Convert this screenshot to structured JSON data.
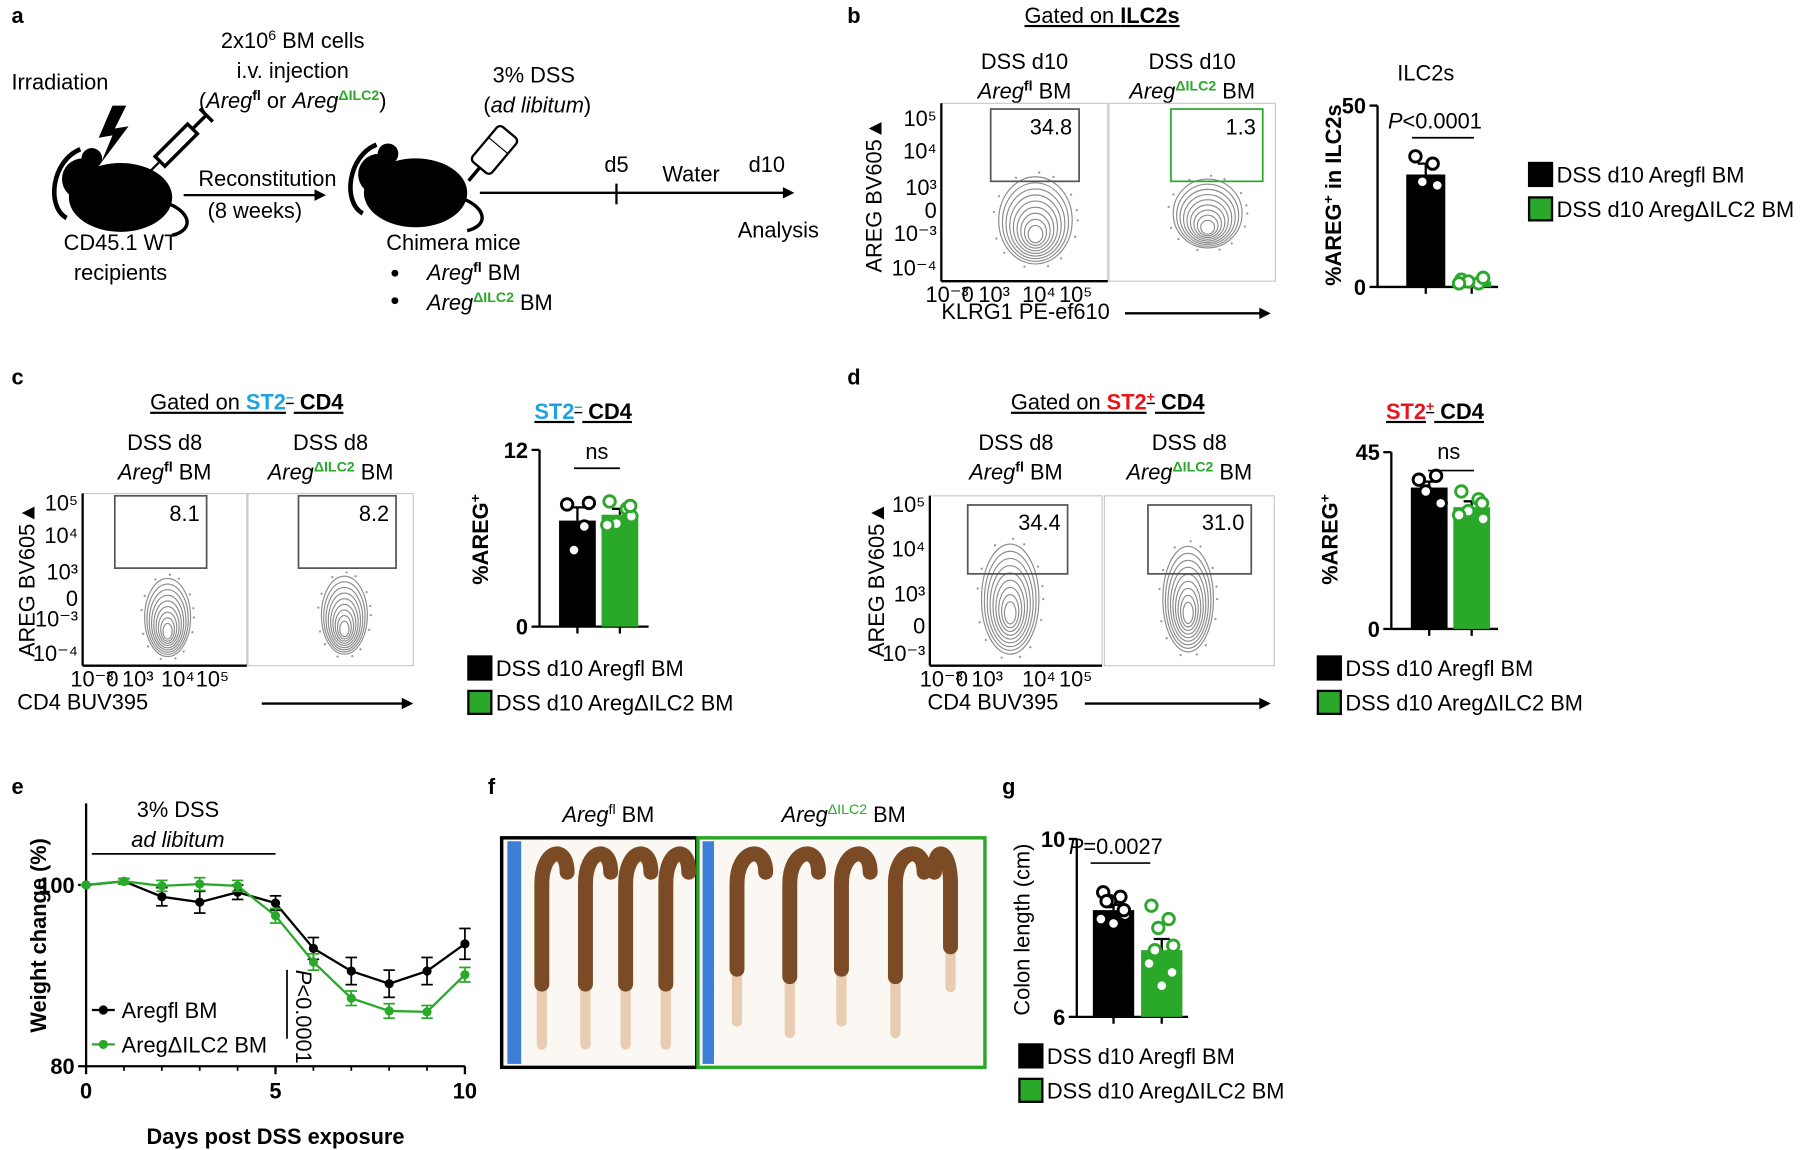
{
  "panel_labels": [
    "a",
    "b",
    "c",
    "d",
    "e",
    "f",
    "g"
  ],
  "schematic": {
    "irradiation": "Irradiation",
    "cells": [
      "2x10",
      "6",
      " BM cells"
    ],
    "injection": "i.v. injection",
    "donors": [
      "(",
      "Areg",
      "fl",
      " or ",
      "Areg",
      "ΔILC2",
      ")"
    ],
    "dss": "3% DSS",
    "ad_libitum": [
      "(",
      "ad libitum",
      ")"
    ],
    "recipients": [
      "CD45.1 WT",
      "recipients"
    ],
    "reconstitution": [
      "Reconstitution",
      "(8 weeks)"
    ],
    "chimera": "Chimera mice",
    "groups": [
      [
        "Areg",
        "fl",
        " BM"
      ],
      [
        "Areg",
        "ΔILC2",
        " BM"
      ]
    ],
    "timeline": [
      "d5",
      "Water",
      "d10",
      "Analysis"
    ]
  },
  "flow": [
    {
      "gate_title": [
        "Gated on ",
        "ILC2s"
      ],
      "y_label": "AREG BV605▲",
      "x_label": "KLRG1 PE-ef610",
      "plots": [
        {
          "header": {
            "line1": "DSS d10",
            "line2": [
              "Areg",
              "fl",
              " BM"
            ]
          },
          "gate": "34.8"
        },
        {
          "header": {
            "line1": "DSS d10",
            "line2": [
              "Areg",
              "ΔILC2",
              " BM"
            ]
          },
          "gate": "1.3"
        }
      ],
      "y_ticks": [
        "10⁵",
        "10⁴",
        "10³",
        "0",
        "10⁻³",
        "10⁻⁴"
      ],
      "x_ticks": [
        "10⁻³",
        "0",
        "10³",
        "10⁴",
        "10⁵"
      ]
    },
    {
      "gate_title": [
        "Gated on ",
        "ST2",
        "–",
        " CD4"
      ],
      "y_label": "AREG BV605▲",
      "x_label": "CD4 BUV395",
      "plots": [
        {
          "header": {
            "line1": "DSS d8",
            "line2": [
              "Areg",
              "fl",
              " BM"
            ]
          },
          "gate": "8.1"
        },
        {
          "header": {
            "line1": "DSS d8",
            "line2": [
              "Areg",
              "ΔILC2",
              " BM"
            ]
          },
          "gate": "8.2"
        }
      ],
      "y_ticks": [
        "10⁵",
        "10⁴",
        "10³",
        "0",
        "10⁻³",
        "10⁻⁴"
      ],
      "x_ticks": [
        "10⁻³",
        "0",
        "10³",
        "10⁴",
        "10⁵"
      ]
    },
    {
      "gate_title": [
        "Gated on ",
        "ST2",
        "+",
        " CD4"
      ],
      "y_label": "AREG BV605▲",
      "x_label": "CD4 BUV395",
      "plots": [
        {
          "header": {
            "line1": "DSS d8",
            "line2": [
              "Areg",
              "fl",
              " BM"
            ]
          },
          "gate": "34.4"
        },
        {
          "header": {
            "line1": "DSS d8",
            "line2": [
              "Areg",
              "ΔILC2",
              " BM"
            ]
          },
          "gate": "31.0"
        }
      ],
      "y_ticks": [
        "10⁵",
        "10⁴",
        "10³",
        "0",
        "10⁻³"
      ],
      "x_ticks": [
        "10⁻³",
        "0",
        "10³",
        "10⁴",
        "10⁵"
      ]
    }
  ],
  "photo": {
    "labels": [
      [
        "Areg",
        "fl",
        " BM"
      ],
      [
        "Areg",
        "ΔILC2",
        " BM"
      ]
    ]
  },
  "chart_data": [
    {
      "type": "bar",
      "title": "ILC2s",
      "y_label": [
        "%AREG",
        "+",
        " in ILC2s"
      ],
      "annotation": [
        "P",
        "<0.0001"
      ],
      "categories": [
        null
      ],
      "series": [
        {
          "name": "DSS d10 Aregfl BM",
          "color": "#000000",
          "values": [
            31
          ],
          "errors": [
            3
          ],
          "points": [
            [
              36,
              34,
              29,
              28
            ]
          ]
        },
        {
          "name": "DSS d10 AregΔILC2 BM",
          "color": "#2aa82a",
          "values": [
            1.5
          ],
          "errors": [
            0.5
          ],
          "points": [
            [
              2,
              1,
              1.5,
              2.5,
              1
            ]
          ]
        }
      ],
      "ylim": [
        0,
        50
      ],
      "yticks": [
        0,
        50
      ]
    },
    {
      "type": "bar",
      "title": [
        "ST2",
        "–",
        " CD4"
      ],
      "y_label": [
        "%AREG",
        "+"
      ],
      "annotation": "ns",
      "categories": [
        null
      ],
      "series": [
        {
          "name": "DSS d10 Aregfl BM",
          "color": "#000000",
          "values": [
            7.2
          ],
          "errors": [
            0.9
          ],
          "points": [
            [
              8.3,
              6.8,
              5.2,
              8.4
            ]
          ]
        },
        {
          "name": "DSS d10 AregΔILC2 BM",
          "color": "#2aa82a",
          "values": [
            7.6
          ],
          "errors": [
            0.4
          ],
          "points": [
            [
              8.5,
              8,
              7,
              7.5,
              6.9,
              8.2
            ]
          ]
        }
      ],
      "ylim": [
        0,
        12
      ],
      "yticks": [
        0,
        12
      ]
    },
    {
      "type": "bar",
      "title": [
        "ST2",
        "+",
        " CD4"
      ],
      "y_label": [
        "%AREG",
        "+"
      ],
      "annotation": "ns",
      "categories": [
        null
      ],
      "series": [
        {
          "name": "DSS d10 Aregfl BM",
          "color": "#000000",
          "values": [
            36
          ],
          "errors": [
            1.5
          ],
          "points": [
            [
              38,
              39,
              35,
              32
            ]
          ]
        },
        {
          "name": "DSS d10 AregΔILC2 BM",
          "color": "#2aa82a",
          "values": [
            31
          ],
          "errors": [
            1.5
          ],
          "points": [
            [
              35,
              33,
              30,
              28,
              29,
              32
            ]
          ]
        }
      ],
      "ylim": [
        0,
        45
      ],
      "yticks": [
        0,
        45
      ]
    },
    {
      "type": "line",
      "title": [
        "3% DSS",
        "ad libitum"
      ],
      "x_label": "Days post DSS exposure",
      "y_label": "Weight change (%)",
      "annotation": [
        "P",
        "<0.0001"
      ],
      "x": [
        0,
        1,
        2,
        3,
        4,
        5,
        6,
        7,
        8,
        9,
        10
      ],
      "series": [
        {
          "name": "Aregfl BM",
          "color": "#000000",
          "values": [
            100,
            100.4,
            98.7,
            98.1,
            99.2,
            98.0,
            93.0,
            90.5,
            89.1,
            90.5,
            93.5
          ],
          "errors": [
            0,
            0.3,
            1,
            1.2,
            0.8,
            0.8,
            1.2,
            1.5,
            1.5,
            1.5,
            1.7
          ]
        },
        {
          "name": "AregΔILC2 BM",
          "color": "#2aa82a",
          "values": [
            100,
            100.4,
            99.9,
            100.1,
            99.9,
            96.6,
            91.5,
            87.5,
            86.1,
            86.0,
            90.1
          ],
          "errors": [
            0,
            0.3,
            0.6,
            0.7,
            0.6,
            0.8,
            0.9,
            0.8,
            0.8,
            0.7,
            0.8
          ]
        }
      ],
      "xlim": [
        0,
        10
      ],
      "xticks": [
        0,
        5,
        10
      ],
      "ylim": [
        80,
        109
      ],
      "yticks": [
        80,
        100
      ]
    },
    {
      "type": "bar",
      "y_label": "Colon length (cm)",
      "annotation": [
        "P",
        "=0.0027"
      ],
      "categories": [
        null
      ],
      "series": [
        {
          "name": "DSS d10 Aregfl BM",
          "color": "#000000",
          "values": [
            8.4
          ],
          "errors": [
            0.12
          ],
          "points": [
            [
              8.8,
              8.7,
              8.6,
              8.3,
              8.2,
              8.4,
              8.1,
              8.6
            ]
          ]
        },
        {
          "name": "DSS d10 AregΔILC2 BM",
          "color": "#2aa82a",
          "values": [
            7.5
          ],
          "errors": [
            0.25
          ],
          "points": [
            [
              8.5,
              8.2,
              8.0,
              7.6,
              7.2,
              7.0,
              6.7,
              7.5
            ]
          ]
        }
      ],
      "ylim": [
        6,
        10
      ],
      "yticks": [
        6,
        10
      ]
    }
  ]
}
